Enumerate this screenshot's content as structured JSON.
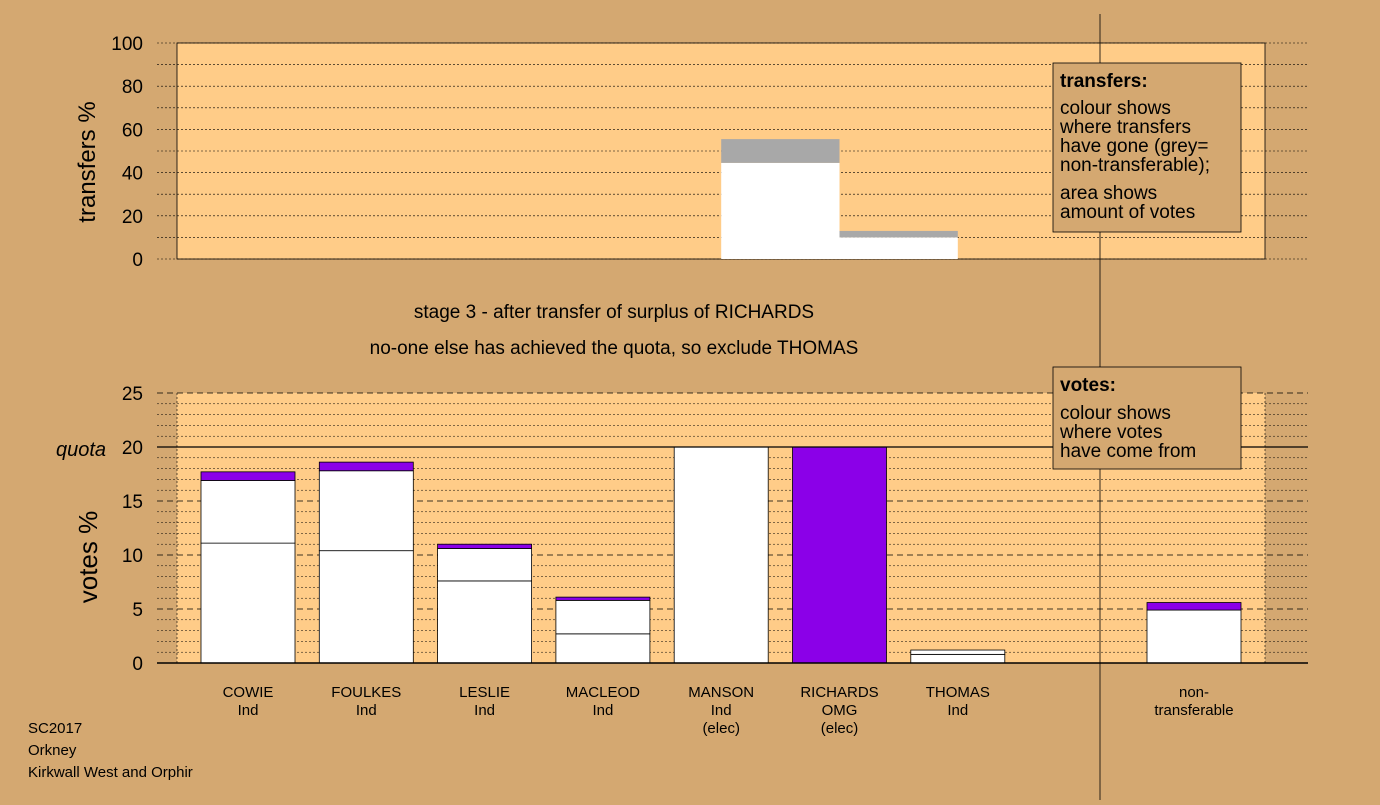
{
  "colors": {
    "background": "#d4a871",
    "plot_area": "#ffcc88",
    "white": "#ffffff",
    "purple": "#8b00e8",
    "grey": "#a8a8a8",
    "line": "#000000"
  },
  "chart_data": [
    {
      "type": "bar",
      "name": "transfers",
      "ylabel": "transfers %",
      "ylim": [
        0,
        100
      ],
      "yticks": [
        0,
        20,
        40,
        60,
        80,
        100
      ],
      "segments": [
        {
          "x_from": "MANSON",
          "x_to": "RICHARDS",
          "color": "white",
          "y_from": 0,
          "y_to": 44.5
        },
        {
          "x_from": "MANSON",
          "x_to": "RICHARDS",
          "color": "grey",
          "y_from": 44.5,
          "y_to": 55.5
        },
        {
          "x_from": "RICHARDS",
          "x_to": "THOMAS",
          "color": "white",
          "y_from": 0,
          "y_to": 10
        },
        {
          "x_from": "RICHARDS",
          "x_to": "THOMAS",
          "color": "grey",
          "y_from": 10,
          "y_to": 13
        }
      ]
    },
    {
      "type": "bar",
      "name": "votes",
      "ylabel": "votes %",
      "ylim": [
        0,
        25
      ],
      "yticks": [
        0,
        5,
        10,
        15,
        20,
        25
      ],
      "quota": 20,
      "quota_label": "quota",
      "categories": [
        {
          "name": "COWIE",
          "party": "Ind",
          "note": "",
          "segments": [
            {
              "color": "white",
              "value": 11.1
            },
            {
              "color": "white",
              "value": 5.8
            },
            {
              "color": "purple",
              "value": 0.8
            }
          ]
        },
        {
          "name": "FOULKES",
          "party": "Ind",
          "note": "",
          "segments": [
            {
              "color": "white",
              "value": 10.4
            },
            {
              "color": "white",
              "value": 7.4
            },
            {
              "color": "purple",
              "value": 0.8
            }
          ]
        },
        {
          "name": "LESLIE",
          "party": "Ind",
          "note": "",
          "segments": [
            {
              "color": "white",
              "value": 7.6
            },
            {
              "color": "white",
              "value": 3.0
            },
            {
              "color": "purple",
              "value": 0.4
            }
          ]
        },
        {
          "name": "MACLEOD",
          "party": "Ind",
          "note": "",
          "segments": [
            {
              "color": "white",
              "value": 2.7
            },
            {
              "color": "white",
              "value": 3.1
            },
            {
              "color": "purple",
              "value": 0.3
            }
          ]
        },
        {
          "name": "MANSON",
          "party": "Ind",
          "note": "(elec)",
          "segments": [
            {
              "color": "white",
              "value": 20
            }
          ]
        },
        {
          "name": "RICHARDS",
          "party": "OMG",
          "note": "(elec)",
          "segments": [
            {
              "color": "purple",
              "value": 20
            }
          ]
        },
        {
          "name": "THOMAS",
          "party": "Ind",
          "note": "",
          "segments": [
            {
              "color": "white",
              "value": 0.8
            },
            {
              "color": "white",
              "value": 0.4
            }
          ]
        }
      ],
      "nontransferable": {
        "label_line1": "non-",
        "label_line2": "transferable",
        "segments": [
          {
            "color": "white",
            "value": 4.9
          },
          {
            "color": "purple",
            "value": 0.7
          }
        ]
      }
    }
  ],
  "titles": {
    "line1": "stage 3 - after transfer of surplus of RICHARDS",
    "line2": "no-one else has achieved the quota, so exclude THOMAS"
  },
  "legend_transfers": {
    "title": "transfers:",
    "lines": [
      "colour shows",
      "where transfers",
      "have gone (grey=",
      "non-transferable);",
      "area shows",
      "amount of votes"
    ]
  },
  "legend_votes": {
    "title": "votes:",
    "lines": [
      "colour shows",
      "where votes",
      "have come from"
    ]
  },
  "footer": {
    "line1": "SC2017",
    "line2": "Orkney",
    "line3": "Kirkwall West and Orphir"
  }
}
